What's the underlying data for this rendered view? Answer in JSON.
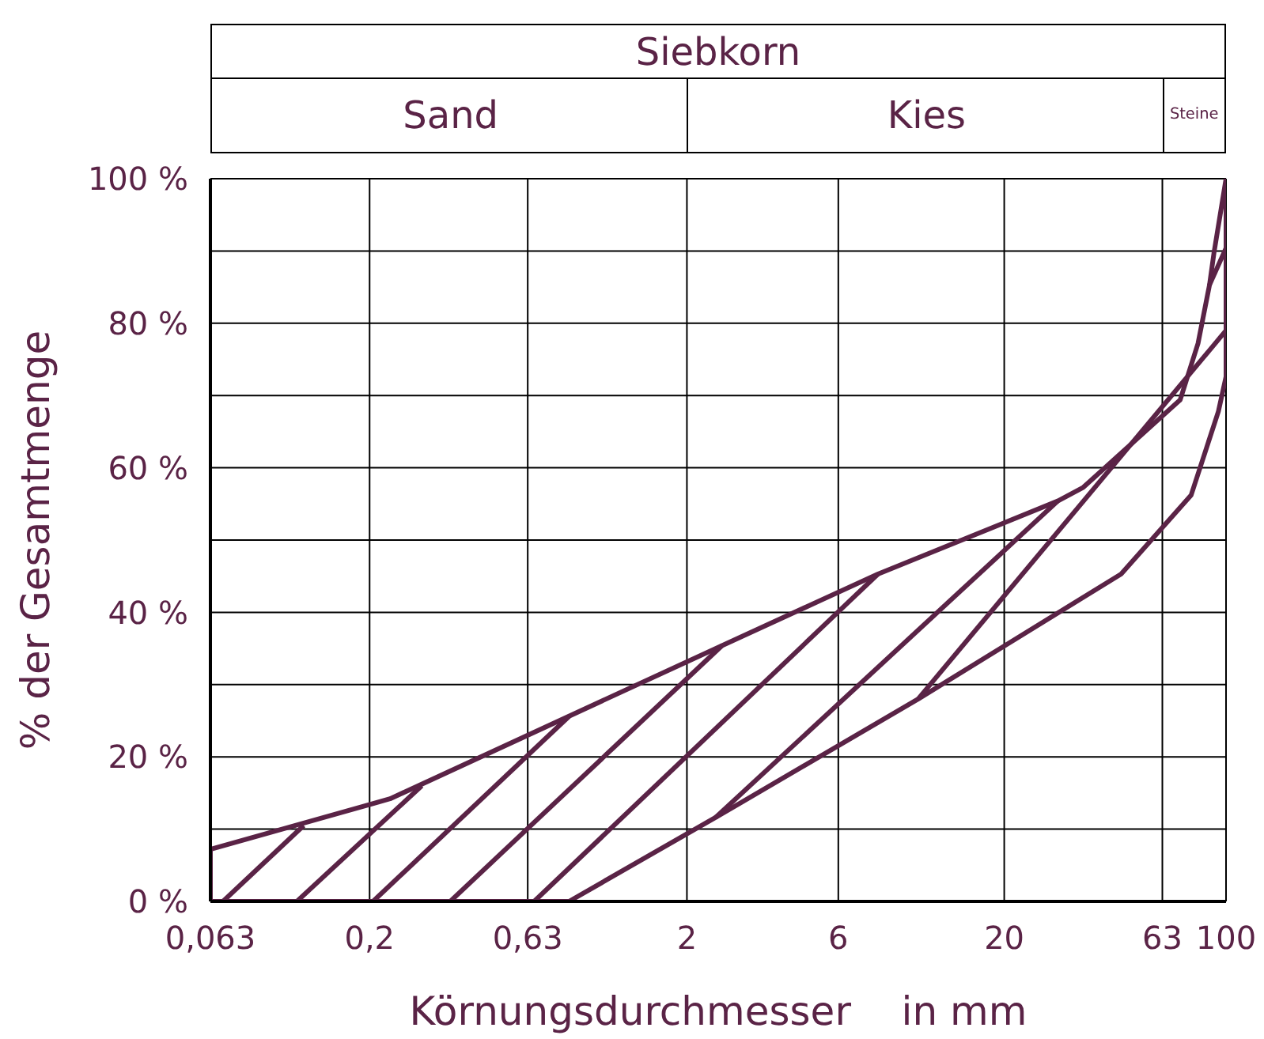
{
  "chart_data": {
    "type": "line",
    "xlabel": "Körnungsdurchmesser    in mm",
    "ylabel": "% der Gesamtmenge",
    "annotations": [
      "Siebkorn",
      "Sand",
      "Kies",
      "Steine"
    ],
    "log": "x",
    "xlim": [
      0.063,
      100
    ],
    "xticks": [
      {
        "value": 0.063,
        "label": "0,063"
      },
      {
        "value": 0.2,
        "label": "0,2"
      },
      {
        "value": 0.63,
        "label": "0,63"
      },
      2,
      6,
      20,
      63,
      100
    ],
    "ylim": [
      0,
      100
    ],
    "yticks": [
      {
        "value": 0,
        "label": "0 %"
      },
      {
        "value": 10,
        "label": null
      },
      {
        "value": 20,
        "label": "20 %"
      },
      {
        "value": 30,
        "label": null
      },
      {
        "value": 40,
        "label": "40 %"
      },
      {
        "value": 50,
        "label": null
      },
      {
        "value": 60,
        "label": "60 %"
      },
      {
        "value": 70,
        "label": null
      },
      {
        "value": 80,
        "label": "80 %"
      },
      {
        "value": 90,
        "label": null
      },
      {
        "value": 100,
        "label": "100 %"
      }
    ],
    "grid": true,
    "marker": "none",
    "line_style": "solid",
    "series": [
      {
        "color": "#5a2346",
        "x": [
          0.063,
          0.063,
          0.232,
          2.58,
          8.0,
          29.5,
          35.5,
          71.7,
          81.6,
          88.7,
          91.6,
          100
        ],
        "values": [
          0,
          7.2,
          14.2,
          35.4,
          45.3,
          55.4,
          57.3,
          69.4,
          77.2,
          85.3,
          89.7,
          100
        ]
      },
      {
        "color": "#5a2346",
        "x": [
          0.063,
          0.85,
          2.46,
          10.7,
          46.7,
          77.6,
          94.6,
          100,
          100
        ],
        "values": [
          0,
          0,
          11.6,
          28,
          45.3,
          56.2,
          67.8,
          72.6,
          100
        ]
      },
      {
        "color": "#5a2346",
        "x": [
          0.069,
          0.124
        ],
        "values": [
          0,
          10.5
        ]
      },
      {
        "color": "#5a2346",
        "x": [
          0.118,
          0.292
        ],
        "values": [
          0,
          16
        ]
      },
      {
        "color": "#5a2346",
        "x": [
          0.205,
          0.85
        ],
        "values": [
          0,
          25.6
        ]
      },
      {
        "color": "#5a2346",
        "x": [
          0.359,
          2.58
        ],
        "values": [
          0,
          35.4
        ]
      },
      {
        "color": "#5a2346",
        "x": [
          0.66,
          8.0
        ],
        "values": [
          0,
          45.3
        ]
      },
      {
        "color": "#5a2346",
        "x": [
          2.46,
          29.5
        ],
        "values": [
          11.6,
          55.4
        ]
      },
      {
        "color": "#5a2346",
        "x": [
          10.7,
          100
        ],
        "values": [
          28,
          79
        ]
      },
      {
        "color": "#5a2346",
        "x": [
          88.7,
          100
        ],
        "values": [
          85.3,
          90.4
        ]
      }
    ]
  }
}
